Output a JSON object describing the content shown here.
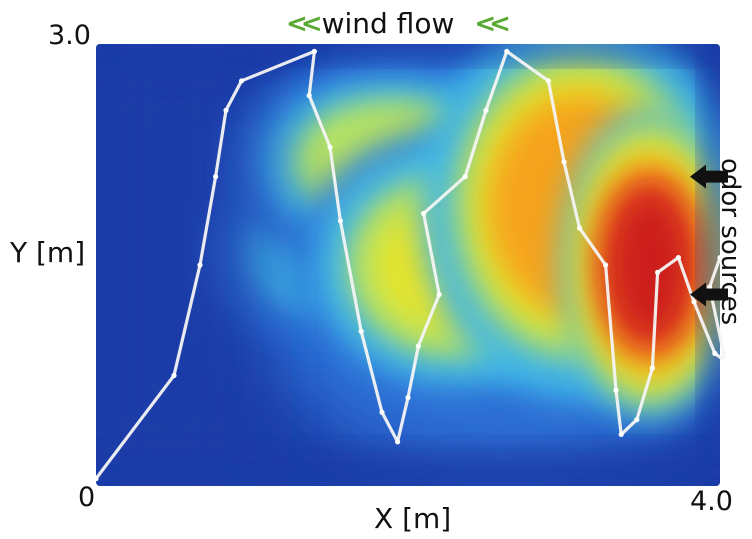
{
  "chart_data": {
    "type": "heatmap",
    "title": "",
    "xlabel": "X [m]",
    "ylabel": "Y [m]",
    "xlim": [
      0,
      4.0
    ],
    "ylim": [
      0,
      3.0
    ],
    "tick_labels": {
      "x_min": "0",
      "x_max": "4.0",
      "y_max": "3.0"
    },
    "colormap": "jet",
    "colormap_stops": [
      "#1a3ca8",
      "#2e6fd6",
      "#3fb6e8",
      "#bfe65a",
      "#f2e41e",
      "#f7a11a",
      "#e8431b",
      "#c8141c"
    ],
    "annotations": {
      "wind": "wind flow",
      "wind_direction": "right-to-left",
      "odor_sources": "odor sources"
    },
    "odor_sources": [
      {
        "x": 4.0,
        "y": 2.1
      },
      {
        "x": 4.0,
        "y": 1.3
      }
    ],
    "intensity_blobs": [
      {
        "x": 3.55,
        "y": 1.5,
        "rx": 0.55,
        "ry": 1.05,
        "value": 1.0
      },
      {
        "x": 3.1,
        "y": 1.9,
        "rx": 1.0,
        "ry": 1.3,
        "value": 0.72
      },
      {
        "x": 2.3,
        "y": 1.5,
        "rx": 1.0,
        "ry": 0.9,
        "value": 0.55
      },
      {
        "x": 1.9,
        "y": 2.2,
        "rx": 1.1,
        "ry": 0.7,
        "value": 0.4
      },
      {
        "x": 1.4,
        "y": 1.6,
        "rx": 0.7,
        "ry": 0.6,
        "value": 0.33
      }
    ],
    "robot_path": [
      [
        0.0,
        0.05
      ],
      [
        0.75,
        0.75
      ],
      [
        1.0,
        1.5
      ],
      [
        1.15,
        2.1
      ],
      [
        1.25,
        2.55
      ],
      [
        1.4,
        2.75
      ],
      [
        2.1,
        2.95
      ],
      [
        2.05,
        2.65
      ],
      [
        2.25,
        2.3
      ],
      [
        2.35,
        1.8
      ],
      [
        2.55,
        1.05
      ],
      [
        2.75,
        0.5
      ],
      [
        2.9,
        0.3
      ],
      [
        3.0,
        0.6
      ],
      [
        3.1,
        0.95
      ],
      [
        3.3,
        1.3
      ],
      [
        3.15,
        1.85
      ],
      [
        3.55,
        2.1
      ],
      [
        3.75,
        2.55
      ],
      [
        3.95,
        2.95
      ],
      [
        4.35,
        2.75
      ],
      [
        4.5,
        2.2
      ],
      [
        4.65,
        1.75
      ],
      [
        4.9,
        1.5
      ],
      [
        5.0,
        0.65
      ],
      [
        5.05,
        0.35
      ],
      [
        5.2,
        0.45
      ],
      [
        5.35,
        0.8
      ],
      [
        5.4,
        1.45
      ],
      [
        5.6,
        1.55
      ],
      [
        5.75,
        1.25
      ],
      [
        5.95,
        0.9
      ],
      [
        6.05,
        0.85
      ],
      [
        5.9,
        1.35
      ],
      [
        6.0,
        1.55
      ]
    ],
    "path_units": "path x/y given on a 0..6 by 0..3 grid mapped onto the plot area"
  }
}
